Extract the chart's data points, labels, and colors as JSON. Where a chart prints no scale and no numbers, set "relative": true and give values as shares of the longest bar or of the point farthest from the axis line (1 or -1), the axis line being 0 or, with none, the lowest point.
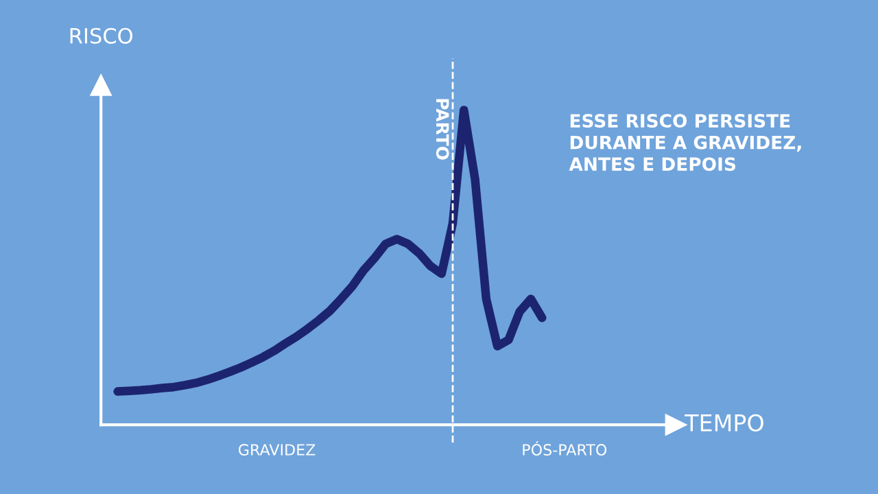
{
  "chart_data": {
    "type": "line",
    "relative": true,
    "ylabel": "RISCO",
    "legend": false,
    "line_style": "solid",
    "categories": [
      null,
      null,
      null,
      null,
      null,
      null,
      null,
      null,
      null,
      null,
      null,
      null,
      null,
      null,
      null,
      null,
      null,
      null,
      null,
      null,
      null,
      null,
      null,
      null,
      null,
      null,
      null,
      null,
      null,
      null,
      null,
      null,
      null,
      null,
      null,
      null,
      null,
      null,
      null
    ],
    "series": [
      {
        "color": "#1c2470",
        "values": [
          0.106,
          0.108,
          0.11,
          0.113,
          0.117,
          0.12,
          0.126,
          0.133,
          0.143,
          0.155,
          0.168,
          0.182,
          0.198,
          0.215,
          0.235,
          0.258,
          0.28,
          0.305,
          0.332,
          0.362,
          0.4,
          0.44,
          0.49,
          0.53,
          0.575,
          0.59,
          0.575,
          0.545,
          0.505,
          0.48,
          0.64,
          1.0,
          0.78,
          0.4,
          0.25,
          0.27,
          0.36,
          0.4,
          0.34
        ]
      }
    ],
    "annotations": [
      "TEMPO",
      "PARTO",
      "GRAVIDEZ",
      "PÓS-PARTO",
      "ESSE RISCO PERSISTE\nDURANTE A GRAVIDEZ,\nANTES E DEPOIS"
    ]
  }
}
